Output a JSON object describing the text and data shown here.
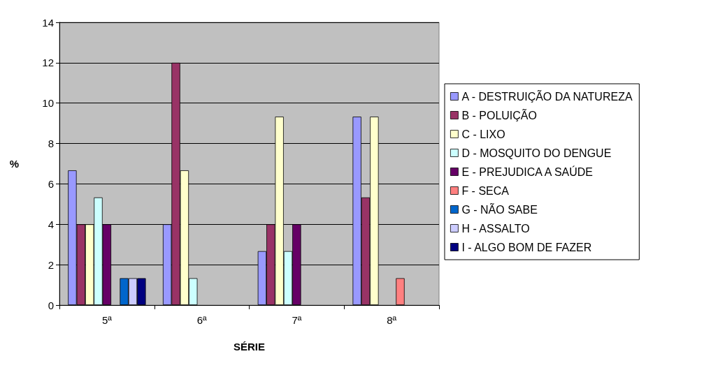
{
  "chart_data": {
    "type": "bar",
    "xlabel": "SÉRIE",
    "ylabel": "%",
    "categories": [
      "5ª",
      "6ª",
      "7ª",
      "8ª"
    ],
    "series": [
      {
        "name": "A - DESTRUIÇÃO DA NATUREZA",
        "color": "#9999ff",
        "values": [
          6.67,
          4,
          2.67,
          9.33
        ]
      },
      {
        "name": "B - POLUIÇÃO",
        "color": "#993366",
        "values": [
          4,
          12,
          4,
          5.33
        ]
      },
      {
        "name": "C - LIXO",
        "color": "#ffffcc",
        "values": [
          4,
          6.67,
          9.33,
          9.33
        ]
      },
      {
        "name": "D - MOSQUITO DO DENGUE",
        "color": "#ccffff",
        "values": [
          5.33,
          1.33,
          2.67,
          0
        ]
      },
      {
        "name": "E - PREJUDICA A SAÚDE",
        "color": "#660066",
        "values": [
          4,
          0,
          4,
          0
        ]
      },
      {
        "name": "F - SECA",
        "color": "#ff8080",
        "values": [
          0,
          0,
          0,
          1.33
        ]
      },
      {
        "name": "G - NÃO SABE",
        "color": "#0066cc",
        "values": [
          1.33,
          0,
          0,
          0
        ]
      },
      {
        "name": "H - ASSALTO",
        "color": "#ccccff",
        "values": [
          1.33,
          0,
          0,
          0
        ]
      },
      {
        "name": "I - ALGO BOM DE FAZER",
        "color": "#000080",
        "values": [
          1.33,
          0,
          0,
          0
        ]
      }
    ],
    "ylim": [
      0,
      14
    ],
    "yticks": [
      0,
      2,
      4,
      6,
      8,
      10,
      12,
      14
    ],
    "grid": "y",
    "legend": "right"
  }
}
